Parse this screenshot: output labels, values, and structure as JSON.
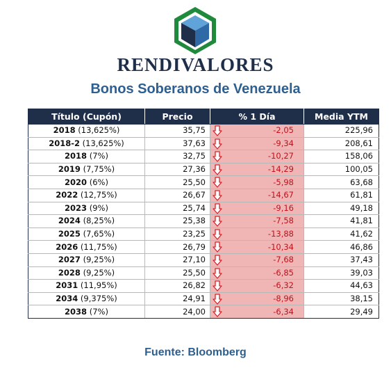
{
  "brand": "RENDIVALORES",
  "subtitle": "Bonos Soberanos de Venezuela",
  "colors": {
    "navy": "#1f2f4a",
    "accent_blue": "#2e5f91",
    "negative_fill": "#f0b6b6",
    "negative_text": "#c0121b",
    "logo_green": "#1f8a3c"
  },
  "table": {
    "headers": [
      "Título (Cupón)",
      "Precio",
      "% 1 Día",
      "Media YTM"
    ],
    "rows": [
      {
        "year": "2018",
        "coupon": "(13,625%)",
        "price": "35,75",
        "change": "-2,05",
        "ytm": "225,96"
      },
      {
        "year": "2018-2",
        "coupon": "(13,625%)",
        "price": "37,63",
        "change": "-9,34",
        "ytm": "208,61"
      },
      {
        "year": "2018",
        "coupon": "(7%)",
        "price": "32,75",
        "change": "-10,27",
        "ytm": "158,06"
      },
      {
        "year": "2019",
        "coupon": "(7,75%)",
        "price": "27,36",
        "change": "-14,29",
        "ytm": "100,05"
      },
      {
        "year": "2020",
        "coupon": "(6%)",
        "price": "25,50",
        "change": "-5,98",
        "ytm": "63,68"
      },
      {
        "year": "2022",
        "coupon": "(12,75%)",
        "price": "26,67",
        "change": "-14,67",
        "ytm": "61,81"
      },
      {
        "year": "2023",
        "coupon": "(9%)",
        "price": "25,74",
        "change": "-9,16",
        "ytm": "49,18"
      },
      {
        "year": "2024",
        "coupon": "(8,25%)",
        "price": "25,38",
        "change": "-7,58",
        "ytm": "41,81"
      },
      {
        "year": "2025",
        "coupon": "(7,65%)",
        "price": "23,25",
        "change": "-13,88",
        "ytm": "41,62"
      },
      {
        "year": "2026",
        "coupon": "(11,75%)",
        "price": "26,79",
        "change": "-10,34",
        "ytm": "46,86"
      },
      {
        "year": "2027",
        "coupon": "(9,25%)",
        "price": "27,10",
        "change": "-7,68",
        "ytm": "37,43"
      },
      {
        "year": "2028",
        "coupon": "(9,25%)",
        "price": "25,50",
        "change": "-6,85",
        "ytm": "39,03"
      },
      {
        "year": "2031",
        "coupon": "(11,95%)",
        "price": "26,82",
        "change": "-6,32",
        "ytm": "44,63"
      },
      {
        "year": "2034",
        "coupon": "(9,375%)",
        "price": "24,91",
        "change": "-8,96",
        "ytm": "38,15"
      },
      {
        "year": "2038",
        "coupon": "(7%)",
        "price": "24,00",
        "change": "-6,34",
        "ytm": "29,49"
      }
    ],
    "change_icon": "down-arrow-icon"
  },
  "source": "Fuente: Bloomberg"
}
